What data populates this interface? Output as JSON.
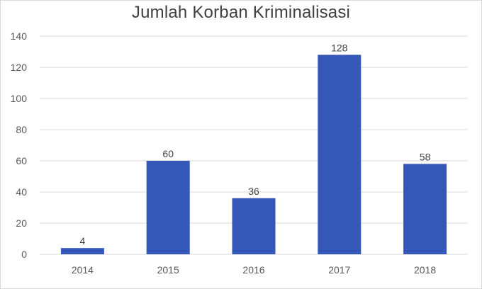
{
  "chart_data": {
    "type": "bar",
    "title": "Jumlah Korban Kriminalisasi",
    "xlabel": "",
    "ylabel": "",
    "categories": [
      "2014",
      "2015",
      "2016",
      "2017",
      "2018"
    ],
    "values": [
      4,
      60,
      36,
      128,
      58
    ],
    "ylim": [
      0,
      140
    ],
    "yticks": [
      0,
      20,
      40,
      60,
      80,
      100,
      120,
      140
    ],
    "grid": true,
    "legend": "none",
    "data_labels": [
      "4",
      "60",
      "36",
      "128",
      "58"
    ],
    "colors": {
      "bar": "#3557b7",
      "grid": "#d9d9d9"
    }
  }
}
